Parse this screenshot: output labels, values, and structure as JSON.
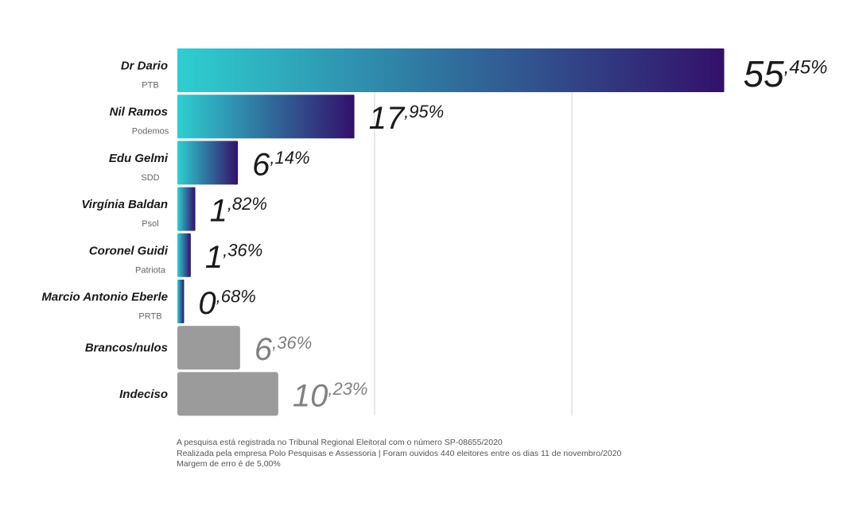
{
  "chart_data": {
    "type": "bar",
    "orientation": "horizontal",
    "xlim": [
      0,
      70
    ],
    "grid": true,
    "categories": [
      {
        "name": "Dr Dario",
        "party": "PTB",
        "value": 55.45,
        "int": "55",
        "dec": ",45%",
        "style": "gradient"
      },
      {
        "name": "Nil Ramos",
        "party": "Podemos",
        "value": 17.95,
        "int": "17",
        "dec": ",95%",
        "style": "gradient"
      },
      {
        "name": "Edu Gelmi",
        "party": "SDD",
        "value": 6.14,
        "int": "6",
        "dec": ",14%",
        "style": "gradient"
      },
      {
        "name": "Virgínia Baldan",
        "party": "Psol",
        "value": 1.82,
        "int": "1",
        "dec": ",82%",
        "style": "gradient"
      },
      {
        "name": "Coronel Guidi",
        "party": "Patriota",
        "value": 1.36,
        "int": "1",
        "dec": ",36%",
        "style": "gradient"
      },
      {
        "name": "Marcio Antonio Eberle",
        "party": "PRTB",
        "value": 0.68,
        "int": "0",
        "dec": ",68%",
        "style": "gradient"
      },
      {
        "name": "Brancos/nulos",
        "party": "",
        "value": 6.36,
        "int": "6",
        "dec": ",36%",
        "style": "gray"
      },
      {
        "name": "Indeciso",
        "party": "",
        "value": 10.23,
        "int": "10",
        "dec": ",23%",
        "style": "gray"
      }
    ]
  },
  "colors": {
    "gradient_start": "#2ecfd0",
    "gradient_end": "#33106a",
    "gray_bar": "#9b9b9b",
    "value_dark": "#1a1a1a",
    "value_gray": "#808080",
    "grid": "#d0d0d0"
  },
  "footnotes": [
    "A pesquisa está registrada no Tribunal Regional Eleitoral com o número SP-08655/2020",
    "Realizada pela empresa Polo Pesquisas e Assessoria | Foram ouvidos 440 eleitores entre os dias  11 de novembro/2020",
    "Margem de erro é de 5,00%"
  ]
}
